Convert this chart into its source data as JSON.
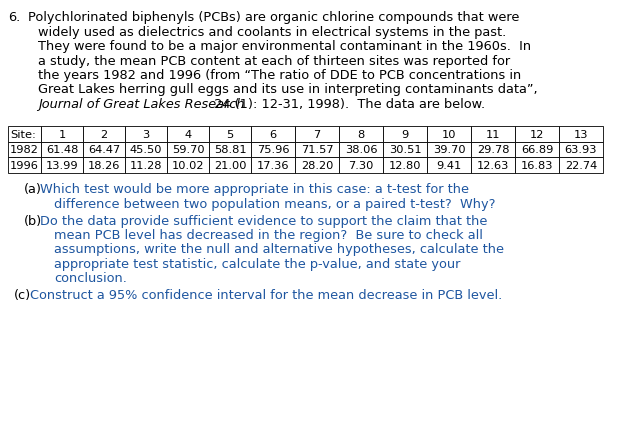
{
  "bg_color": "#ffffff",
  "text_color": "#000000",
  "blue_color": "#1e56a0",
  "para_lines": [
    "Polychlorinated biphenyls (PCBs) are organic chlorine compounds that were",
    "widely used as dielectrics and coolants in electrical systems in the past.",
    "They were found to be a major environmental contaminant in the 1960s.  In",
    "a study, the mean PCB content at each of thirteen sites was reported for",
    "the years 1982 and 1996 (from “The ratio of DDE to PCB concentrations in",
    "Great Lakes herring gull eggs and its use in interpreting contaminants data”,"
  ],
  "journal_italic": "Journal of Great Lakes Research",
  "journal_rest": " 24 (1): 12-31, 1998).  The data are below.",
  "table_headers": [
    "Site:",
    "1",
    "2",
    "3",
    "4",
    "5",
    "6",
    "7",
    "8",
    "9",
    "10",
    "11",
    "12",
    "13"
  ],
  "row_1982": [
    "1982",
    "61.48",
    "64.47",
    "45.50",
    "59.70",
    "58.81",
    "75.96",
    "71.57",
    "38.06",
    "30.51",
    "39.70",
    "29.78",
    "66.89",
    "63.93"
  ],
  "row_1996": [
    "1996",
    "13.99",
    "18.26",
    "11.28",
    "10.02",
    "21.00",
    "17.36",
    "28.20",
    "7.30",
    "12.80",
    "9.41",
    "12.63",
    "16.83",
    "22.74"
  ],
  "qa_label": "(a)",
  "qa_line1": "Which test would be more appropriate in this case: a t-test for the",
  "qa_line2": "difference between two population means, or a paired t-test?  Why?",
  "qb_label": "(b)",
  "qb_line1": "Do the data provide sufficient evidence to support the claim that the",
  "qb_line2": "mean PCB level has decreased in the region?  Be sure to check all",
  "qb_line3": "assumptions, write the null and alternative hypotheses, calculate the",
  "qb_line4": "appropriate test statistic, calculate the p-value, and state your",
  "qb_line5": "conclusion.",
  "qc_label": "(c)",
  "qc_line1": "Construct a 95% confidence interval for the mean decrease in PCB level.",
  "font_size_para": 9.3,
  "font_size_table": 8.2,
  "font_size_q": 9.3
}
